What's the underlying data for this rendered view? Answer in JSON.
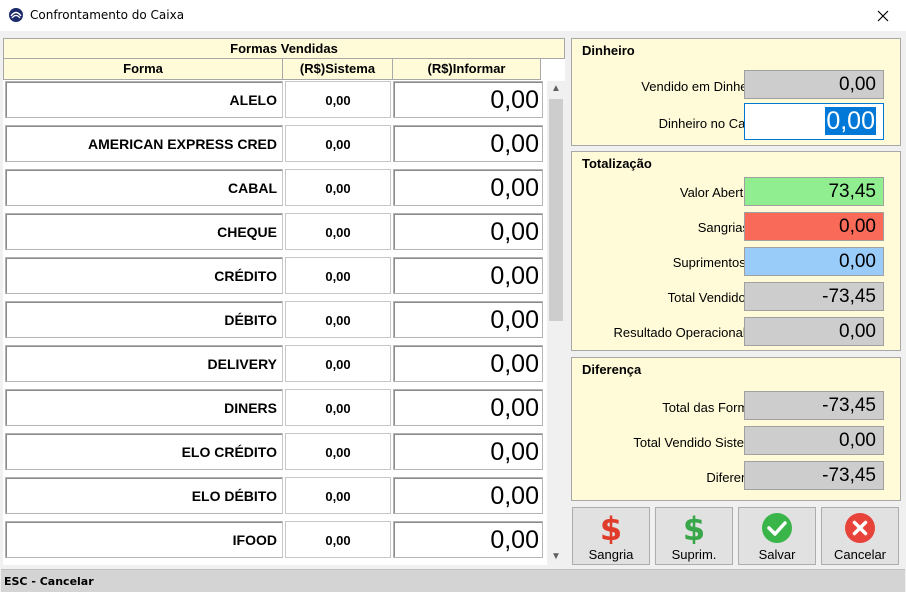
{
  "window": {
    "title": "Confrontamento do Caixa",
    "app_icon": "app-logo-icon",
    "close_icon": "close-icon"
  },
  "grid": {
    "header_title": "Formas Vendidas",
    "columns": [
      "Forma",
      "(R$)Sistema",
      "(R$)Informar"
    ],
    "rows": [
      {
        "forma": "ALELO",
        "sistema": "0,00",
        "informar": "0,00"
      },
      {
        "forma": "AMERICAN EXPRESS CRED",
        "sistema": "0,00",
        "informar": "0,00"
      },
      {
        "forma": "CABAL",
        "sistema": "0,00",
        "informar": "0,00"
      },
      {
        "forma": "CHEQUE",
        "sistema": "0,00",
        "informar": "0,00"
      },
      {
        "forma": "CRÉDITO",
        "sistema": "0,00",
        "informar": "0,00"
      },
      {
        "forma": "DÉBITO",
        "sistema": "0,00",
        "informar": "0,00"
      },
      {
        "forma": "DELIVERY",
        "sistema": "0,00",
        "informar": "0,00"
      },
      {
        "forma": "DINERS",
        "sistema": "0,00",
        "informar": "0,00"
      },
      {
        "forma": "ELO CRÉDITO",
        "sistema": "0,00",
        "informar": "0,00"
      },
      {
        "forma": "ELO DÉBITO",
        "sistema": "0,00",
        "informar": "0,00"
      },
      {
        "forma": "IFOOD",
        "sistema": "0,00",
        "informar": "0,00"
      }
    ]
  },
  "dinheiro": {
    "title": "Dinheiro",
    "vendido_label": "Vendido em Dinheiro",
    "vendido_value": "0,00",
    "caixa_label": "Dinheiro no Caixa",
    "caixa_value": "0,00"
  },
  "totalizacao": {
    "title": "Totalização",
    "items": [
      {
        "label": "Valor Abertura",
        "value": "73,45",
        "color": "#90ee90"
      },
      {
        "label": "Sangrias(-)",
        "value": "0,00",
        "color": "#fa6a58"
      },
      {
        "label": "Suprimentos(+)",
        "value": "0,00",
        "color": "#99ccf8"
      },
      {
        "label": "Total Vendido(+)",
        "value": "-73,45",
        "color": "#cdcdcd"
      },
      {
        "label": "Resultado Operacional(=)",
        "value": "0,00",
        "color": "#cdcdcd"
      }
    ]
  },
  "diferenca": {
    "title": "Diferença",
    "items": [
      {
        "label": "Total das Formas",
        "value": "-73,45"
      },
      {
        "label": "Total Vendido Sistema",
        "value": "0,00"
      },
      {
        "label": "Diferença",
        "value": "-73,45"
      }
    ]
  },
  "buttons": {
    "sangria": {
      "label": "Sangria",
      "icon": "dollar-red-icon"
    },
    "suprim": {
      "label": "Suprim.",
      "icon": "dollar-green-icon"
    },
    "salvar": {
      "label": "Salvar",
      "icon": "check-circle-icon"
    },
    "cancelar": {
      "label": "Cancelar",
      "icon": "close-circle-icon"
    }
  },
  "status": {
    "text": "ESC - Cancelar"
  },
  "colors": {
    "panel_bg": "#fffbd8",
    "accent": "#0078d7"
  }
}
